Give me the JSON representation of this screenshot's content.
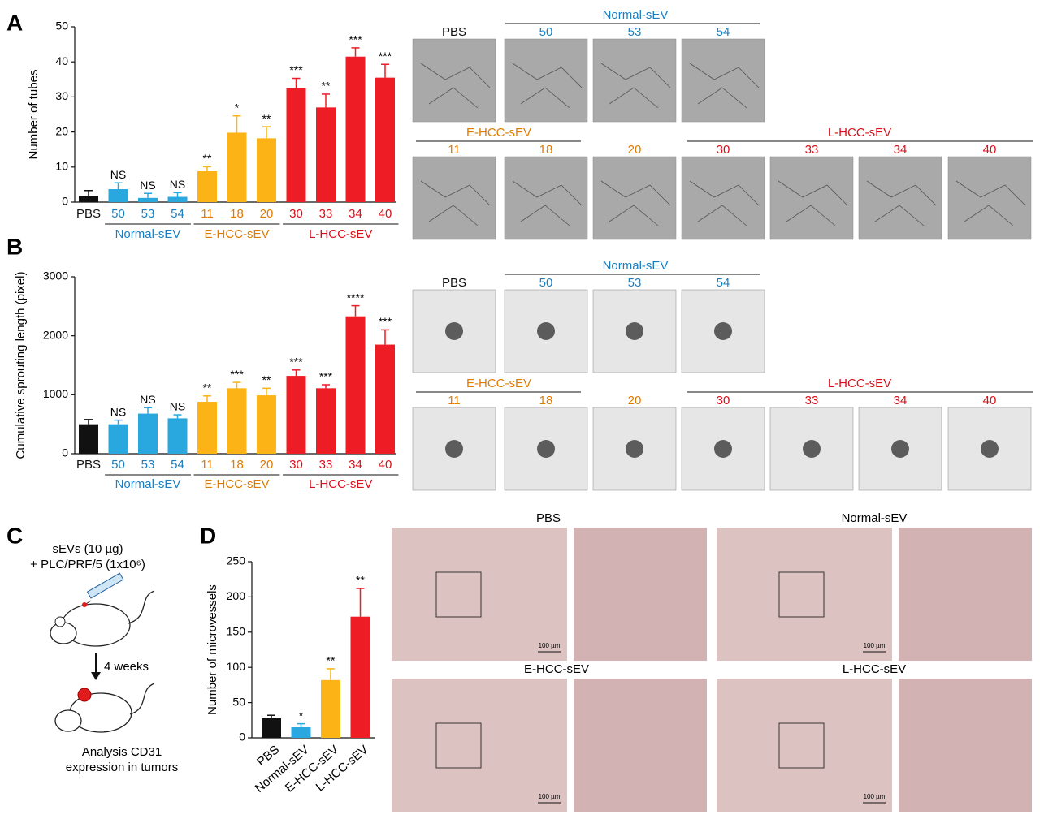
{
  "panel_labels": [
    "A",
    "B",
    "C",
    "D"
  ],
  "chart_data": [
    {
      "type": "bar",
      "ylabel": "Number of tubes",
      "categories": [
        "PBS",
        "50",
        "53",
        "54",
        "11",
        "18",
        "20",
        "30",
        "33",
        "34",
        "40"
      ],
      "values": [
        1.8,
        3.7,
        1.2,
        1.5,
        8.8,
        19.8,
        18.2,
        32.5,
        27,
        41.5,
        35.5
      ],
      "errors": [
        1.5,
        1.8,
        1.3,
        1.2,
        1.3,
        4.8,
        3.3,
        2.8,
        3.8,
        2.5,
        3.8
      ],
      "annotations": [
        null,
        "NS",
        "NS",
        "NS",
        "**",
        "*",
        "**",
        "***",
        "**",
        "***",
        "***"
      ],
      "colors": [
        "#111111",
        "#29a8e0",
        "#29a8e0",
        "#29a8e0",
        "#fbb315",
        "#fbb315",
        "#fbb315",
        "#ee1c25",
        "#ee1c25",
        "#ee1c25",
        "#ee1c25"
      ],
      "groups": [
        {
          "name": "Normal-sEV",
          "count": 3,
          "color": "#1a7fc0"
        },
        {
          "name": "E-HCC-sEV",
          "count": 3,
          "color": "#e07b00"
        },
        {
          "name": "L-HCC-sEV",
          "count": 4,
          "color": "#d9101a"
        }
      ],
      "ylim": [
        0,
        50
      ],
      "yticks": [
        0,
        10,
        20,
        30,
        40,
        50
      ]
    },
    {
      "type": "bar",
      "ylabel": "Cumulative sprouting length (pixel)",
      "categories": [
        "PBS",
        "50",
        "53",
        "54",
        "11",
        "18",
        "20",
        "30",
        "33",
        "34",
        "40"
      ],
      "values": [
        500,
        500,
        680,
        600,
        880,
        1110,
        990,
        1320,
        1110,
        2330,
        1850
      ],
      "errors": [
        80,
        70,
        100,
        60,
        100,
        100,
        120,
        100,
        60,
        180,
        250
      ],
      "annotations": [
        null,
        "NS",
        "NS",
        "NS",
        "**",
        "***",
        "**",
        "***",
        "***",
        "****",
        "***"
      ],
      "colors": [
        "#111111",
        "#29a8e0",
        "#29a8e0",
        "#29a8e0",
        "#fbb315",
        "#fbb315",
        "#fbb315",
        "#ee1c25",
        "#ee1c25",
        "#ee1c25",
        "#ee1c25"
      ],
      "groups": [
        {
          "name": "Normal-sEV",
          "count": 3,
          "color": "#1a7fc0"
        },
        {
          "name": "E-HCC-sEV",
          "count": 3,
          "color": "#e07b00"
        },
        {
          "name": "L-HCC-sEV",
          "count": 4,
          "color": "#d9101a"
        }
      ],
      "ylim": [
        0,
        3000
      ],
      "yticks": [
        0,
        1000,
        2000,
        3000
      ]
    },
    {
      "type": "bar",
      "ylabel": "Number of microvessels",
      "categories": [
        "PBS",
        "Normal-sEV",
        "E-HCC-sEV",
        "L-HCC-sEV"
      ],
      "values": [
        28,
        15,
        82,
        172
      ],
      "errors": [
        4,
        5,
        16,
        40
      ],
      "annotations": [
        null,
        "*",
        "**",
        "**"
      ],
      "colors": [
        "#111111",
        "#29a8e0",
        "#fbb315",
        "#ee1c25"
      ],
      "ylim": [
        0,
        250
      ],
      "yticks": [
        0,
        50,
        100,
        150,
        200,
        250
      ]
    }
  ],
  "tube_images": {
    "top_group": "Normal-sEV",
    "top_labels": [
      "PBS",
      "50",
      "53",
      "54"
    ],
    "bottom_groups": [
      "E-HCC-sEV",
      "L-HCC-sEV"
    ],
    "bottom_labels": [
      "11",
      "18",
      "20",
      "30",
      "33",
      "34",
      "40"
    ]
  },
  "sprouting_images": {
    "top_group": "Normal-sEV",
    "top_labels": [
      "PBS",
      "50",
      "53",
      "54"
    ],
    "bottom_groups": [
      "E-HCC-sEV",
      "L-HCC-sEV"
    ],
    "bottom_labels": [
      "11",
      "18",
      "20",
      "30",
      "33",
      "34",
      "40"
    ]
  },
  "schematic": {
    "treatment": [
      "sEVs (10 µg)",
      "+ PLC/PRF/5 (1x10⁶)"
    ],
    "interval": "4 weeks",
    "readout": [
      "Analysis CD31",
      "expression in tumors"
    ]
  },
  "ihc_images": {
    "groups": [
      "PBS",
      "Normal-sEV",
      "E-HCC-sEV",
      "L-HCC-sEV"
    ],
    "scale_bar": "100 µm"
  }
}
